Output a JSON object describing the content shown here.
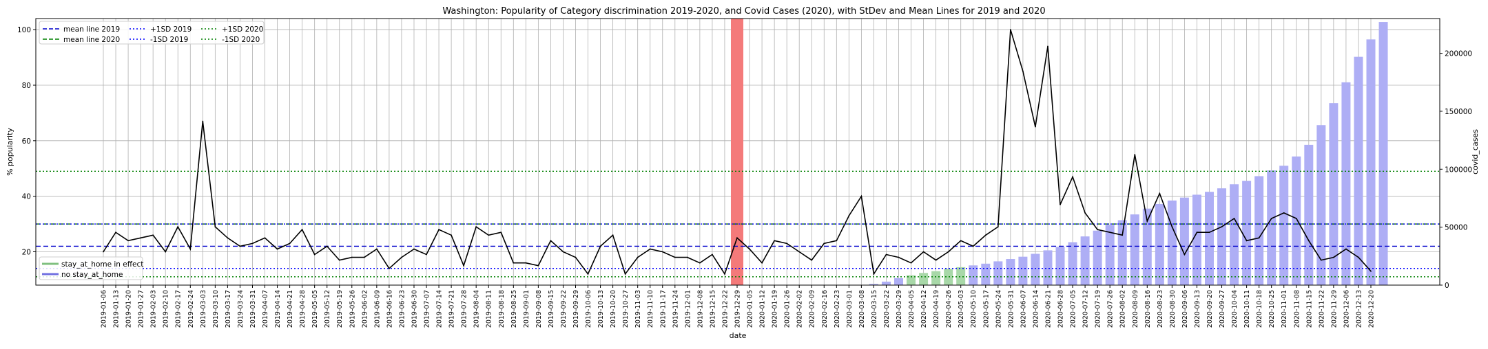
{
  "chart_data": {
    "type": "line",
    "title": "Washington: Popularity of Category discrimination 2019-2020, and Covid Cases (2020), with StDev and Mean Lines for 2019 and 2020",
    "xlabel": "date",
    "ylabel": "% popularity",
    "y2label": "covid_cases",
    "ylim": [
      8,
      104
    ],
    "y2lim": [
      0,
      230000
    ],
    "yticks": [
      20,
      40,
      60,
      80,
      100
    ],
    "y2ticks": [
      0,
      50000,
      100000,
      150000,
      200000
    ],
    "grid": true,
    "legend_placement": "upper-left",
    "legend": [
      {
        "label": "mean line 2019",
        "color": "#0000cc",
        "style": "dashed"
      },
      {
        "label": "mean line 2020",
        "color": "#008000",
        "style": "dashed"
      },
      {
        "label": "+1SD 2019",
        "color": "#0000ff",
        "style": "dotted"
      },
      {
        "label": "-1SD 2019",
        "color": "#0000ff",
        "style": "dotted"
      },
      {
        "label": "+1SD 2020",
        "color": "#008000",
        "style": "dotted"
      },
      {
        "label": "-1SD 2020",
        "color": "#008000",
        "style": "dotted"
      }
    ],
    "legend2": [
      {
        "label": "stay_at_home in effect",
        "color": "#80c080"
      },
      {
        "label": "no stay_at_home",
        "color": "#7070e0"
      }
    ],
    "reference_lines": {
      "mean_2019": 22,
      "mean_2020": 30,
      "plus_sd_2019": 30,
      "minus_sd_2019": 14,
      "plus_sd_2020": 49,
      "minus_sd_2020": 11
    },
    "highlight_range": [
      "2019-12-29",
      "2020-01-05"
    ],
    "dates": [
      "2019-01-06",
      "2019-01-13",
      "2019-01-20",
      "2019-01-27",
      "2019-02-03",
      "2019-02-10",
      "2019-02-17",
      "2019-02-24",
      "2019-03-03",
      "2019-03-10",
      "2019-03-17",
      "2019-03-24",
      "2019-03-31",
      "2019-04-07",
      "2019-04-14",
      "2019-04-21",
      "2019-04-28",
      "2019-05-05",
      "2019-05-12",
      "2019-05-19",
      "2019-05-26",
      "2019-06-02",
      "2019-06-09",
      "2019-06-16",
      "2019-06-23",
      "2019-06-30",
      "2019-07-07",
      "2019-07-14",
      "2019-07-21",
      "2019-07-28",
      "2019-08-04",
      "2019-08-11",
      "2019-08-18",
      "2019-08-25",
      "2019-09-01",
      "2019-09-08",
      "2019-09-15",
      "2019-09-22",
      "2019-09-29",
      "2019-10-06",
      "2019-10-13",
      "2019-10-20",
      "2019-10-27",
      "2019-11-03",
      "2019-11-10",
      "2019-11-17",
      "2019-11-24",
      "2019-12-01",
      "2019-12-08",
      "2019-12-15",
      "2019-12-22",
      "2019-12-29",
      "2020-01-05",
      "2020-01-12",
      "2020-01-19",
      "2020-01-26",
      "2020-02-02",
      "2020-02-09",
      "2020-02-16",
      "2020-02-23",
      "2020-03-01",
      "2020-03-08",
      "2020-03-15",
      "2020-03-22",
      "2020-03-29",
      "2020-04-05",
      "2020-04-12",
      "2020-04-19",
      "2020-04-26",
      "2020-05-03",
      "2020-05-10",
      "2020-05-17",
      "2020-05-24",
      "2020-05-31",
      "2020-06-07",
      "2020-06-14",
      "2020-06-21",
      "2020-06-28",
      "2020-07-05",
      "2020-07-12",
      "2020-07-19",
      "2020-07-26",
      "2020-08-02",
      "2020-08-09",
      "2020-08-16",
      "2020-08-23",
      "2020-08-30",
      "2020-09-06",
      "2020-09-13",
      "2020-09-20",
      "2020-09-27",
      "2020-10-04",
      "2020-10-11",
      "2020-10-18",
      "2020-10-25",
      "2020-11-01",
      "2020-11-08",
      "2020-11-15",
      "2020-11-22",
      "2020-11-29",
      "2020-12-06",
      "2020-12-13",
      "2020-12-20"
    ],
    "popularity": [
      20,
      27,
      24,
      25,
      26,
      20,
      29,
      21,
      67,
      29,
      25,
      22,
      23,
      25,
      21,
      23,
      28,
      19,
      22,
      17,
      18,
      18,
      21,
      14,
      18,
      21,
      19,
      28,
      26,
      15,
      29,
      26,
      27,
      16,
      16,
      15,
      24,
      20,
      18,
      12,
      22,
      26,
      12,
      18,
      21,
      20,
      18,
      18,
      16,
      19,
      12,
      25,
      21,
      16,
      24,
      23,
      20,
      17,
      23,
      24,
      33,
      40,
      12,
      19,
      18,
      16,
      20,
      17,
      20,
      24,
      22,
      26,
      29,
      100,
      85,
      65,
      94,
      37,
      47,
      34,
      28,
      27,
      26,
      55,
      31,
      41,
      29,
      19,
      27,
      27,
      29,
      32,
      24,
      25,
      32,
      34,
      32,
      24,
      17,
      18,
      21,
      18,
      13
    ],
    "covid_cases": [
      0,
      0,
      0,
      0,
      0,
      0,
      0,
      0,
      0,
      0,
      0,
      0,
      0,
      0,
      0,
      0,
      0,
      0,
      0,
      0,
      0,
      0,
      0,
      0,
      0,
      0,
      0,
      0,
      0,
      0,
      0,
      0,
      0,
      0,
      0,
      0,
      0,
      0,
      0,
      0,
      0,
      0,
      0,
      0,
      0,
      0,
      0,
      0,
      0,
      0,
      0,
      0,
      0,
      0,
      0,
      0,
      0,
      0,
      0,
      0,
      0,
      0,
      1000,
      3000,
      6000,
      8500,
      10500,
      12000,
      14000,
      15500,
      17000,
      18500,
      20500,
      22500,
      24500,
      27000,
      30000,
      33000,
      37000,
      42000,
      47000,
      52000,
      56000,
      61000,
      66000,
      70000,
      73000,
      75500,
      78000,
      80500,
      83500,
      87000,
      90000,
      94000,
      99000,
      103000,
      111000,
      121000,
      138000,
      157000,
      175000,
      197000,
      212000,
      227000
    ],
    "stay_at_home": [
      false,
      false,
      false,
      false,
      false,
      false,
      false,
      false,
      false,
      false,
      false,
      false,
      false,
      false,
      false,
      false,
      false,
      false,
      false,
      false,
      false,
      false,
      false,
      false,
      false,
      false,
      false,
      false,
      false,
      false,
      false,
      false,
      false,
      false,
      false,
      false,
      false,
      false,
      false,
      false,
      false,
      false,
      false,
      false,
      false,
      false,
      false,
      false,
      false,
      false,
      false,
      false,
      false,
      false,
      false,
      false,
      false,
      false,
      false,
      false,
      false,
      false,
      false,
      false,
      false,
      true,
      true,
      true,
      true,
      true,
      false,
      false,
      false,
      false,
      false,
      false,
      false,
      false,
      false,
      false,
      false,
      false,
      false,
      false,
      false,
      false,
      false,
      false,
      false,
      false,
      false,
      false,
      false,
      false,
      false,
      false,
      false,
      false,
      false,
      false,
      false,
      false,
      false
    ]
  }
}
